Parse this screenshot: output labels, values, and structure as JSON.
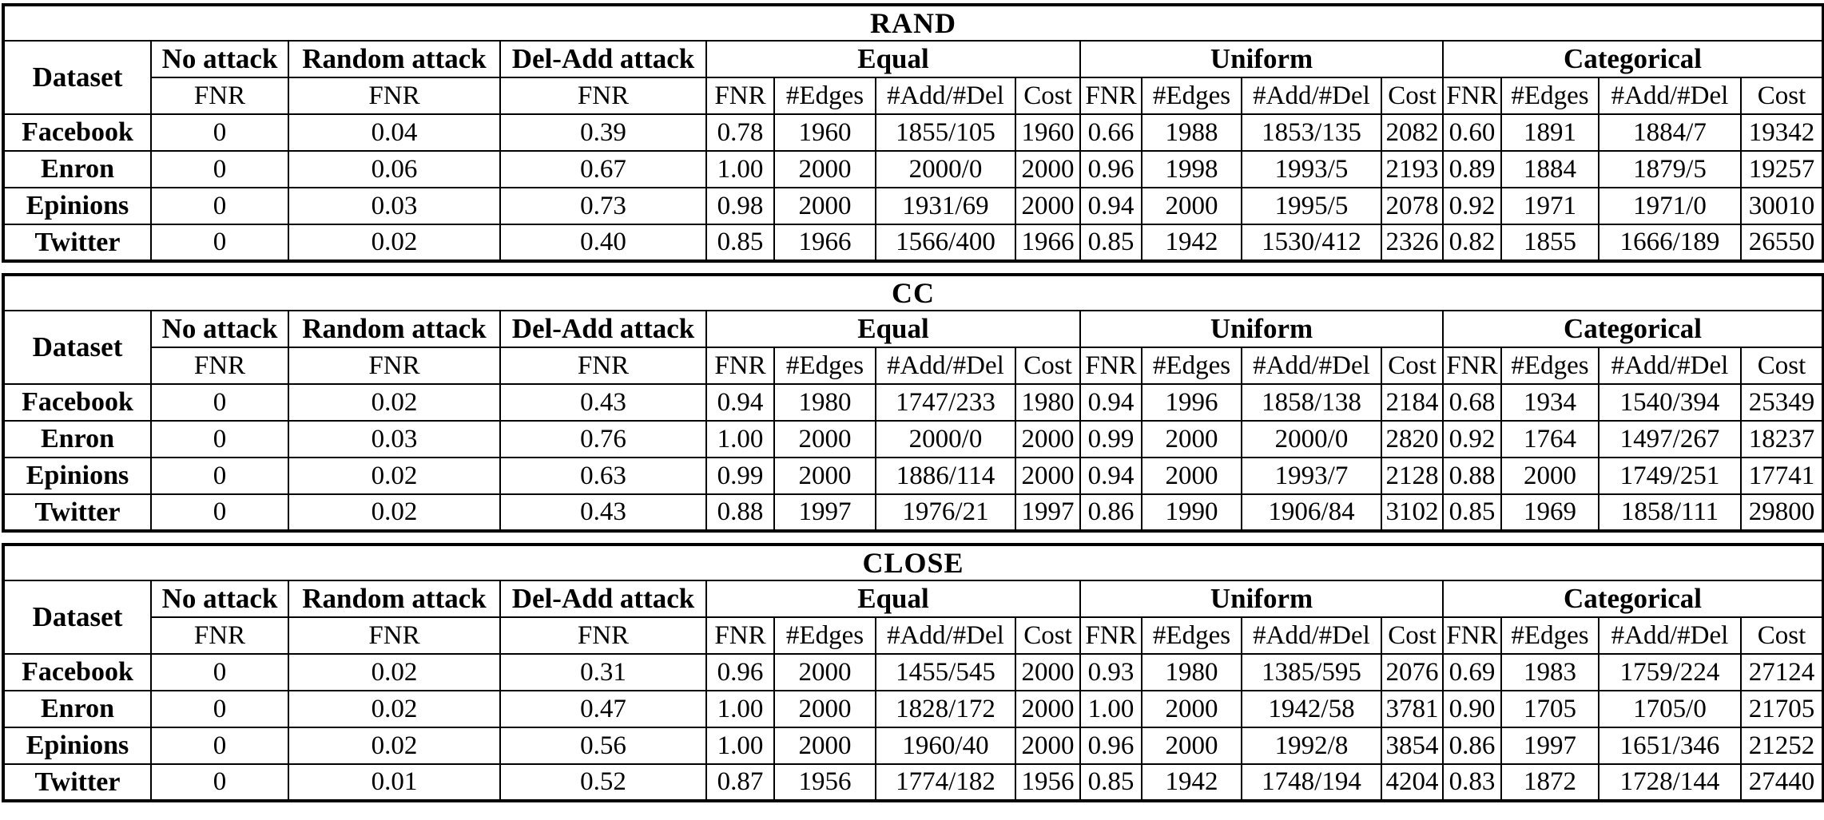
{
  "columns": {
    "dataset": "Dataset",
    "no_attack": "No attack",
    "random_attack": "Random attack",
    "del_add_attack": "Del-Add attack",
    "fnr": "FNR",
    "edges": "#Edges",
    "add_del": "#Add/#Del",
    "cost": "Cost",
    "groups": {
      "equal": "Equal",
      "uniform": "Uniform",
      "categorical": "Categorical"
    }
  },
  "tables": [
    {
      "title": "RAND",
      "rows": [
        {
          "dataset": "Facebook",
          "no_attack": "0",
          "random_attack": "0.04",
          "del_add_attack": "0.39",
          "equal": {
            "fnr": "0.78",
            "edges": "1960",
            "add_del": "1855/105",
            "cost": "1960"
          },
          "uniform": {
            "fnr": "0.66",
            "edges": "1988",
            "add_del": "1853/135",
            "cost": "2082"
          },
          "categorical": {
            "fnr": "0.60",
            "edges": "1891",
            "add_del": "1884/7",
            "cost": "19342"
          }
        },
        {
          "dataset": "Enron",
          "no_attack": "0",
          "random_attack": "0.06",
          "del_add_attack": "0.67",
          "equal": {
            "fnr": "1.00",
            "edges": "2000",
            "add_del": "2000/0",
            "cost": "2000"
          },
          "uniform": {
            "fnr": "0.96",
            "edges": "1998",
            "add_del": "1993/5",
            "cost": "2193"
          },
          "categorical": {
            "fnr": "0.89",
            "edges": "1884",
            "add_del": "1879/5",
            "cost": "19257"
          }
        },
        {
          "dataset": "Epinions",
          "no_attack": "0",
          "random_attack": "0.03",
          "del_add_attack": "0.73",
          "equal": {
            "fnr": "0.98",
            "edges": "2000",
            "add_del": "1931/69",
            "cost": "2000"
          },
          "uniform": {
            "fnr": "0.94",
            "edges": "2000",
            "add_del": "1995/5",
            "cost": "2078"
          },
          "categorical": {
            "fnr": "0.92",
            "edges": "1971",
            "add_del": "1971/0",
            "cost": "30010"
          }
        },
        {
          "dataset": "Twitter",
          "no_attack": "0",
          "random_attack": "0.02",
          "del_add_attack": "0.40",
          "equal": {
            "fnr": "0.85",
            "edges": "1966",
            "add_del": "1566/400",
            "cost": "1966"
          },
          "uniform": {
            "fnr": "0.85",
            "edges": "1942",
            "add_del": "1530/412",
            "cost": "2326"
          },
          "categorical": {
            "fnr": "0.82",
            "edges": "1855",
            "add_del": "1666/189",
            "cost": "26550"
          }
        }
      ]
    },
    {
      "title": "CC",
      "rows": [
        {
          "dataset": "Facebook",
          "no_attack": "0",
          "random_attack": "0.02",
          "del_add_attack": "0.43",
          "equal": {
            "fnr": "0.94",
            "edges": "1980",
            "add_del": "1747/233",
            "cost": "1980"
          },
          "uniform": {
            "fnr": "0.94",
            "edges": "1996",
            "add_del": "1858/138",
            "cost": "2184"
          },
          "categorical": {
            "fnr": "0.68",
            "edges": "1934",
            "add_del": "1540/394",
            "cost": "25349"
          }
        },
        {
          "dataset": "Enron",
          "no_attack": "0",
          "random_attack": "0.03",
          "del_add_attack": "0.76",
          "equal": {
            "fnr": "1.00",
            "edges": "2000",
            "add_del": "2000/0",
            "cost": "2000"
          },
          "uniform": {
            "fnr": "0.99",
            "edges": "2000",
            "add_del": "2000/0",
            "cost": "2820"
          },
          "categorical": {
            "fnr": "0.92",
            "edges": "1764",
            "add_del": "1497/267",
            "cost": "18237"
          }
        },
        {
          "dataset": "Epinions",
          "no_attack": "0",
          "random_attack": "0.02",
          "del_add_attack": "0.63",
          "equal": {
            "fnr": "0.99",
            "edges": "2000",
            "add_del": "1886/114",
            "cost": "2000"
          },
          "uniform": {
            "fnr": "0.94",
            "edges": "2000",
            "add_del": "1993/7",
            "cost": "2128"
          },
          "categorical": {
            "fnr": "0.88",
            "edges": "2000",
            "add_del": "1749/251",
            "cost": "17741"
          }
        },
        {
          "dataset": "Twitter",
          "no_attack": "0",
          "random_attack": "0.02",
          "del_add_attack": "0.43",
          "equal": {
            "fnr": "0.88",
            "edges": "1997",
            "add_del": "1976/21",
            "cost": "1997"
          },
          "uniform": {
            "fnr": "0.86",
            "edges": "1990",
            "add_del": "1906/84",
            "cost": "3102"
          },
          "categorical": {
            "fnr": "0.85",
            "edges": "1969",
            "add_del": "1858/111",
            "cost": "29800"
          }
        }
      ]
    },
    {
      "title": "CLOSE",
      "rows": [
        {
          "dataset": "Facebook",
          "no_attack": "0",
          "random_attack": "0.02",
          "del_add_attack": "0.31",
          "equal": {
            "fnr": "0.96",
            "edges": "2000",
            "add_del": "1455/545",
            "cost": "2000"
          },
          "uniform": {
            "fnr": "0.93",
            "edges": "1980",
            "add_del": "1385/595",
            "cost": "2076"
          },
          "categorical": {
            "fnr": "0.69",
            "edges": "1983",
            "add_del": "1759/224",
            "cost": "27124"
          }
        },
        {
          "dataset": "Enron",
          "no_attack": "0",
          "random_attack": "0.02",
          "del_add_attack": "0.47",
          "equal": {
            "fnr": "1.00",
            "edges": "2000",
            "add_del": "1828/172",
            "cost": "2000"
          },
          "uniform": {
            "fnr": "1.00",
            "edges": "2000",
            "add_del": "1942/58",
            "cost": "3781"
          },
          "categorical": {
            "fnr": "0.90",
            "edges": "1705",
            "add_del": "1705/0",
            "cost": "21705"
          }
        },
        {
          "dataset": "Epinions",
          "no_attack": "0",
          "random_attack": "0.02",
          "del_add_attack": "0.56",
          "equal": {
            "fnr": "1.00",
            "edges": "2000",
            "add_del": "1960/40",
            "cost": "2000"
          },
          "uniform": {
            "fnr": "0.96",
            "edges": "2000",
            "add_del": "1992/8",
            "cost": "3854"
          },
          "categorical": {
            "fnr": "0.86",
            "edges": "1997",
            "add_del": "1651/346",
            "cost": "21252"
          }
        },
        {
          "dataset": "Twitter",
          "no_attack": "0",
          "random_attack": "0.01",
          "del_add_attack": "0.52",
          "equal": {
            "fnr": "0.87",
            "edges": "1956",
            "add_del": "1774/182",
            "cost": "1956"
          },
          "uniform": {
            "fnr": "0.85",
            "edges": "1942",
            "add_del": "1748/194",
            "cost": "4204"
          },
          "categorical": {
            "fnr": "0.83",
            "edges": "1872",
            "add_del": "1728/144",
            "cost": "27440"
          }
        }
      ]
    }
  ]
}
